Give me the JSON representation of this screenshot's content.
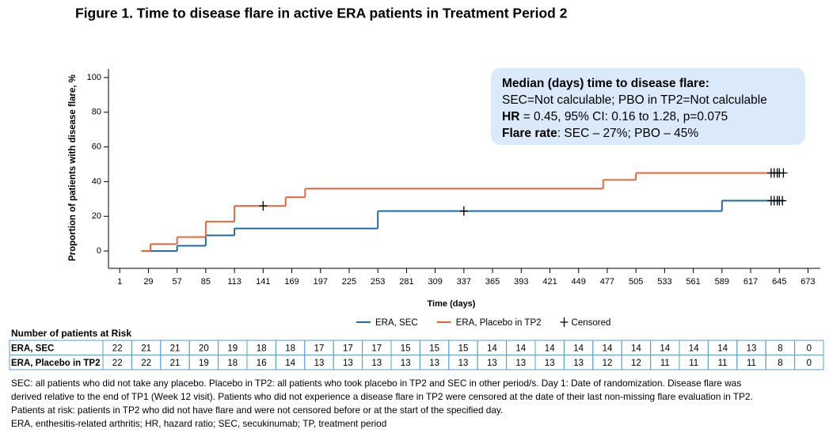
{
  "title": "Figure 1. Time to disease flare in active ERA patients in Treatment Period 2",
  "chart_data": {
    "type": "step",
    "x_label": "Time (days)",
    "y_label": "Proportion of patients with disease flare, %",
    "xlim": [
      -10,
      685
    ],
    "ylim": [
      -10,
      105
    ],
    "xticks": [
      1,
      29,
      57,
      85,
      113,
      141,
      169,
      197,
      225,
      253,
      281,
      309,
      337,
      365,
      393,
      421,
      449,
      477,
      505,
      533,
      561,
      589,
      617,
      645,
      673
    ],
    "yticks": [
      0,
      20,
      40,
      60,
      80,
      100
    ],
    "series": [
      {
        "name": "ERA, SEC",
        "color": "#1f6aa5",
        "x": [
          22,
          57,
          85,
          113,
          253,
          589,
          650
        ],
        "values": [
          0,
          3,
          9,
          13,
          23,
          29,
          29
        ],
        "censored_x": [
          337,
          637,
          640,
          643,
          645,
          648
        ],
        "censored_values": [
          23,
          29,
          29,
          29,
          29,
          29
        ]
      },
      {
        "name": "ERA, Placebo in TP2",
        "color": "#e8663c",
        "x": [
          22,
          31,
          57,
          85,
          113,
          163,
          182,
          473,
          505,
          650
        ],
        "values": [
          0,
          4,
          8,
          17,
          26,
          31,
          36,
          41,
          45,
          45
        ],
        "censored_x": [
          141,
          637,
          640,
          643,
          645,
          649
        ],
        "censored_values": [
          26,
          45,
          45,
          45,
          45,
          45
        ]
      }
    ],
    "censored_label": "Censored",
    "annotation": {
      "lines": [
        [
          {
            "text": "Median (days) time to disease flare:",
            "bold": true
          }
        ],
        [
          {
            "text": "SEC=Not calculable; PBO in TP2=Not calculable",
            "bold": false
          }
        ],
        [
          {
            "text": "HR",
            "bold": true
          },
          {
            "text": " = 0.45, 95% CI: 0.16 to 1.28, p=0.075",
            "bold": false
          }
        ],
        [
          {
            "text": "Flare rate",
            "bold": true
          },
          {
            "text": ": SEC – 27%; PBO – 45%",
            "bold": false
          }
        ]
      ]
    }
  },
  "risk_table": {
    "title": "Number of patients at Risk",
    "rows": [
      {
        "label": "ERA, SEC",
        "color": "#2e75b6",
        "values": [
          22,
          21,
          21,
          20,
          19,
          18,
          18,
          17,
          17,
          17,
          15,
          15,
          15,
          14,
          14,
          14,
          14,
          14,
          14,
          14,
          14,
          14,
          13,
          8,
          0
        ]
      },
      {
        "label": "ERA, Placebo in TP2",
        "color": "#e8572a",
        "values": [
          22,
          22,
          21,
          19,
          18,
          16,
          14,
          13,
          13,
          13,
          13,
          13,
          13,
          13,
          13,
          13,
          13,
          12,
          12,
          11,
          11,
          11,
          11,
          8,
          0
        ]
      }
    ]
  },
  "footnotes": [
    "SEC: all patients who did not take any placebo. Placebo in TP2: all patients who took placebo in TP2 and SEC in other period/s. Day 1: Date of randomization. Disease flare was",
    "derived relative to the end of TP1 (Week 12 visit). Patients who did not experience a disease flare in TP2 were censored at the date of their last non-missing flare evaluation in TP2.",
    "Patients at risk: patients in TP2 who did not have flare and were not censored before or at the start of the specified day.",
    "ERA, enthesitis-related arthritis; HR, hazard ratio; SEC, secukinumab; TP, treatment period"
  ]
}
